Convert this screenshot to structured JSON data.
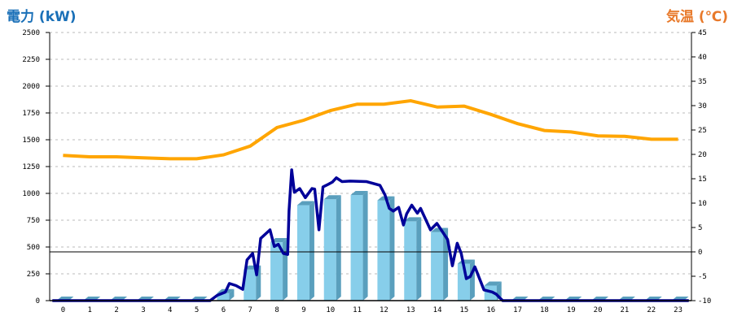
{
  "chart_data": {
    "type": "bar+line",
    "left_axis": {
      "label": "電力 (kW)",
      "range": [
        0,
        2500
      ],
      "ticks": [
        0,
        250,
        500,
        750,
        1000,
        1250,
        1500,
        1750,
        2000,
        2250,
        2500
      ]
    },
    "right_axis": {
      "label": "気温 (℃)",
      "range": [
        -10,
        45
      ],
      "ticks": [
        -10,
        -5,
        0,
        5,
        10,
        15,
        20,
        25,
        30,
        35,
        40,
        45
      ]
    },
    "categories": [
      "0",
      "1",
      "2",
      "3",
      "4",
      "5",
      "6",
      "7",
      "8",
      "9",
      "10",
      "11",
      "12",
      "13",
      "14",
      "15",
      "16",
      "17",
      "18",
      "19",
      "20",
      "21",
      "22",
      "23"
    ],
    "grid": true,
    "colors": {
      "bar_front": "#87ceea",
      "bar_side": "#5a9fbd",
      "power_line": "#000099",
      "temp_line": "#ffa500",
      "left_title": "#1a70b8",
      "right_title": "#e8792a"
    },
    "series": [
      {
        "type": "bar",
        "axis": "left",
        "values": [
          0,
          0,
          0,
          0,
          0,
          0,
          70,
          290,
          545,
          890,
          945,
          985,
          935,
          740,
          640,
          345,
          140,
          0,
          0,
          0,
          0,
          0,
          0,
          0
        ]
      },
      {
        "type": "line",
        "axis": "left",
        "points": [
          [
            -0.4,
            0
          ],
          [
            5.5,
            0
          ],
          [
            5.77,
            50
          ],
          [
            6.07,
            80
          ],
          [
            6.22,
            160
          ],
          [
            6.47,
            140
          ],
          [
            6.72,
            105
          ],
          [
            6.88,
            380
          ],
          [
            7.09,
            440
          ],
          [
            7.24,
            240
          ],
          [
            7.39,
            580
          ],
          [
            7.74,
            660
          ],
          [
            7.9,
            505
          ],
          [
            8.05,
            525
          ],
          [
            8.24,
            440
          ],
          [
            8.4,
            430
          ],
          [
            8.45,
            835
          ],
          [
            8.55,
            1220
          ],
          [
            8.65,
            1010
          ],
          [
            8.85,
            1045
          ],
          [
            9.06,
            960
          ],
          [
            9.31,
            1045
          ],
          [
            9.41,
            1040
          ],
          [
            9.57,
            660
          ],
          [
            9.72,
            1060
          ],
          [
            9.92,
            1085
          ],
          [
            10.07,
            1105
          ],
          [
            10.22,
            1145
          ],
          [
            10.43,
            1110
          ],
          [
            10.73,
            1115
          ],
          [
            11.34,
            1110
          ],
          [
            11.85,
            1075
          ],
          [
            12.04,
            985
          ],
          [
            12.2,
            860
          ],
          [
            12.35,
            835
          ],
          [
            12.55,
            870
          ],
          [
            12.73,
            705
          ],
          [
            12.85,
            810
          ],
          [
            13.04,
            890
          ],
          [
            13.25,
            815
          ],
          [
            13.37,
            860
          ],
          [
            13.74,
            660
          ],
          [
            13.98,
            720
          ],
          [
            14.38,
            570
          ],
          [
            14.56,
            325
          ],
          [
            14.74,
            535
          ],
          [
            14.89,
            440
          ],
          [
            15.08,
            205
          ],
          [
            15.23,
            225
          ],
          [
            15.4,
            315
          ],
          [
            15.74,
            100
          ],
          [
            16.05,
            80
          ],
          [
            16.2,
            60
          ],
          [
            16.44,
            0
          ],
          [
            23.4,
            0
          ]
        ]
      },
      {
        "type": "line",
        "axis": "right",
        "values": [
          19.8,
          19.5,
          19.5,
          19.3,
          19.1,
          19.1,
          19.9,
          21.7,
          25.5,
          27,
          29,
          30.3,
          30.3,
          31,
          29.7,
          29.9,
          28.2,
          26.3,
          24.9,
          24.6,
          23.8,
          23.7,
          23.1,
          23.1
        ]
      }
    ],
    "reference_line": {
      "axis": "right",
      "value": 0
    }
  }
}
